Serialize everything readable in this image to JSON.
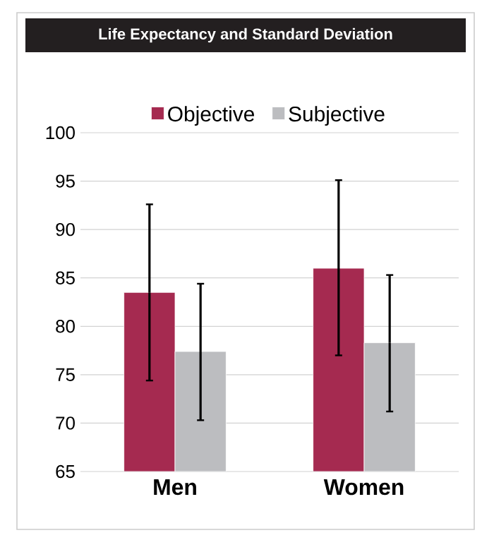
{
  "chart_data": {
    "type": "bar",
    "title": "Life Expectancy and Standard Deviation",
    "categories": [
      "Men",
      "Women"
    ],
    "series": [
      {
        "name": "Objective",
        "color": "#a52a50",
        "values": [
          83.5,
          86.0
        ],
        "errors": [
          [
            74.4,
            92.6
          ],
          [
            77.0,
            95.1
          ]
        ]
      },
      {
        "name": "Subjective",
        "color": "#bcbdc0",
        "values": [
          77.4,
          78.3
        ],
        "errors": [
          [
            70.3,
            84.4
          ],
          [
            71.2,
            85.3
          ]
        ]
      }
    ],
    "ylim": [
      65,
      100
    ],
    "yticks": [
      65,
      70,
      75,
      80,
      85,
      90,
      95,
      100
    ],
    "grid": "y",
    "legend": "top"
  }
}
